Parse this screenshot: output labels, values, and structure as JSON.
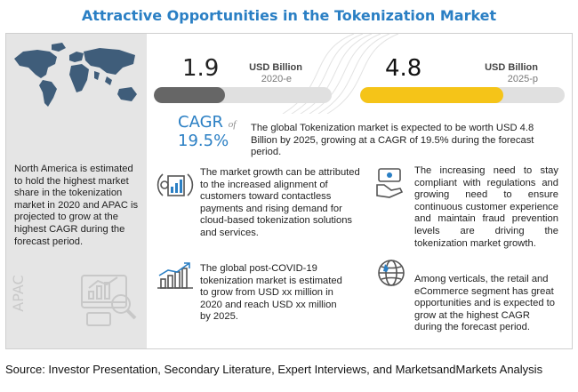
{
  "title": "Attractive Opportunities in the Tokenization Market",
  "left_panel": {
    "text": "North America is estimated to hold the highest market share in the tokenization market in 2020 and APAC is projected to grow at the highest CAGR during the forecast period.",
    "region_label": "APAC"
  },
  "chart_data": {
    "type": "bar",
    "categories": [
      "2020-e",
      "2025-p"
    ],
    "values": [
      1.9,
      4.8
    ],
    "unit": "USD Billion",
    "colors": [
      "#666666",
      "#f5c418"
    ],
    "track_color": "#e0e0e0"
  },
  "metric_left": {
    "value": "1.9",
    "unit": "USD Billion",
    "year": "2020-e",
    "fill_fraction": 0.4
  },
  "metric_right": {
    "value": "4.8",
    "unit": "USD Billion",
    "year": "2025-p",
    "fill_fraction": 0.7
  },
  "cagr": {
    "label": "CAGR",
    "of": "of",
    "value": "19.5%"
  },
  "summary": "The global Tokenization market is expected to be worth USD 4.8 Billion by 2025, growing at a CAGR of 19.5% during the forecast period.",
  "insights": [
    {
      "icon": "payment-growth-icon",
      "text": "The market growth can be attributed to the increased alignment of customers toward contactless payments and rising demand for cloud-based tokenization solutions and services."
    },
    {
      "icon": "growth-chart-icon",
      "text": "The global post-COVID-19 tokenization market is estimated to grow from USD xx million in 2020 and reach USD xx million by 2025."
    },
    {
      "icon": "compliance-money-icon",
      "text": "The increasing need to stay compliant with regulations and growing need to ensure continuous customer experience and maintain fraud prevention levels are driving the tokenization market growth."
    },
    {
      "icon": "globe-icon",
      "text": "Among verticals, the retail and eCommerce segment has great opportunities and is expected to grow at the highest CAGR during the forecast period."
    }
  ],
  "source": "Source: Investor Presentation, Secondary Literature, Expert Interviews, and MarketsandMarkets Analysis"
}
